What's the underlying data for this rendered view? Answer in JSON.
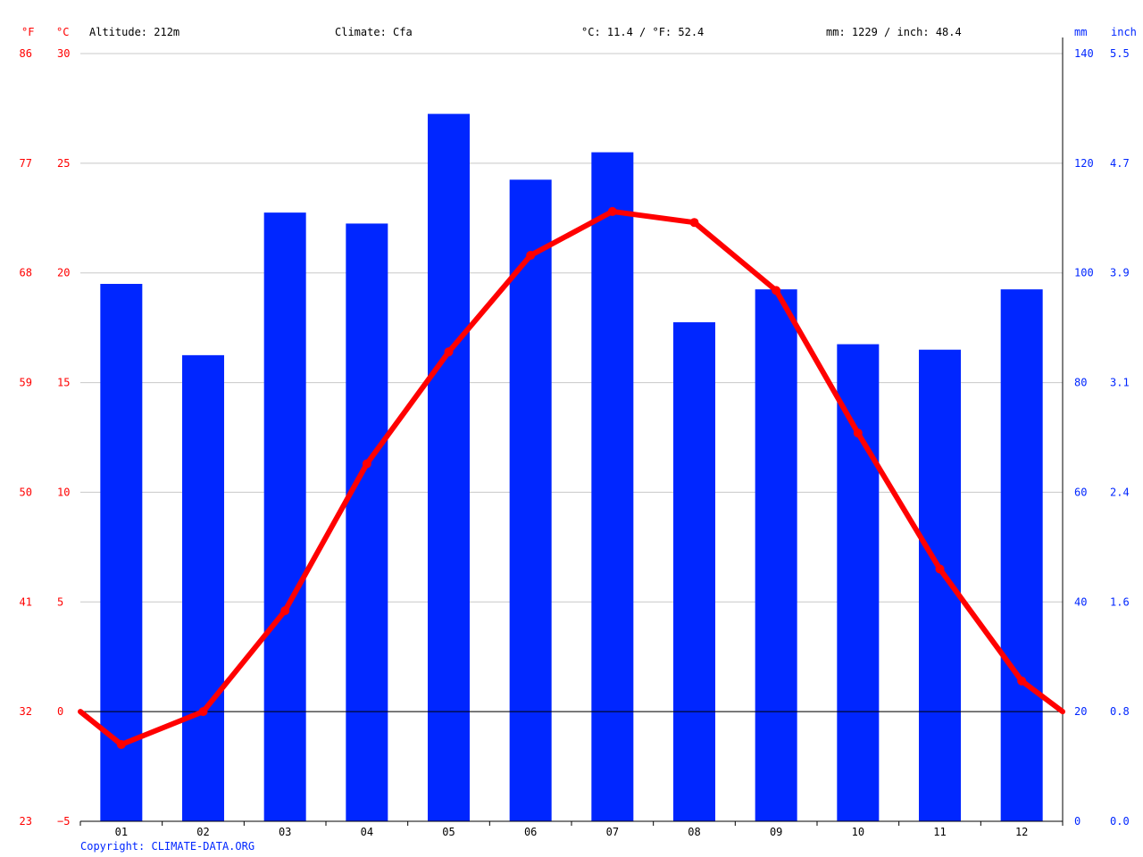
{
  "header": {
    "unit_f": "°F",
    "unit_c": "°C",
    "altitude": "Altitude: 212m",
    "climate": "Climate: Cfa",
    "avg_temp": "°C: 11.4 / °F: 52.4",
    "precip_total": "mm: 1229 / inch: 48.4",
    "unit_mm": "mm",
    "unit_inch": "inch"
  },
  "copyright": "Copyright: CLIMATE-DATA.ORG",
  "colors": {
    "temperature": "#ff0000",
    "precipitation": "#0026ff",
    "axis_right": "#0026ff",
    "axis_left": "#ff0000",
    "grid": "#c8c8c8"
  },
  "axes": {
    "c_ticks": [
      "30",
      "25",
      "20",
      "15",
      "10",
      "5",
      "0",
      "−5"
    ],
    "f_ticks": [
      "86",
      "77",
      "68",
      "59",
      "50",
      "41",
      "32",
      "23"
    ],
    "mm_ticks": [
      "140",
      "120",
      "100",
      "80",
      "60",
      "40",
      "20",
      "0"
    ],
    "inch_ticks": [
      "5.5",
      "4.7",
      "3.9",
      "3.1",
      "2.4",
      "1.6",
      "0.8",
      "0.0"
    ]
  },
  "chart_data": {
    "type": "bar",
    "categories": [
      "01",
      "02",
      "03",
      "04",
      "05",
      "06",
      "07",
      "08",
      "09",
      "10",
      "11",
      "12"
    ],
    "series": [
      {
        "type": "bar",
        "axis": "mm",
        "values": [
          98,
          85,
          111,
          109,
          129,
          117,
          122,
          91,
          97,
          87,
          86,
          97
        ]
      },
      {
        "type": "line",
        "axis": "°C",
        "values": [
          -1.5,
          0.0,
          4.6,
          11.3,
          16.4,
          20.8,
          22.8,
          22.3,
          19.2,
          12.7,
          6.5,
          1.4
        ],
        "start_value": 0.0,
        "end_value": 0.0
      }
    ],
    "ylim_c": [
      -5,
      30
    ],
    "ylim_mm": [
      0,
      140
    ],
    "grid": true
  }
}
